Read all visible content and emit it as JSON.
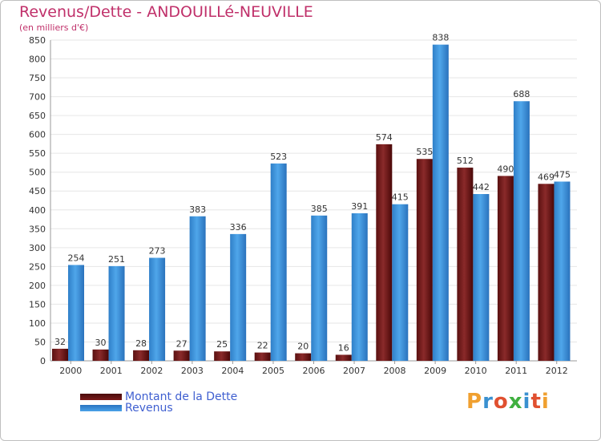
{
  "header": {
    "title": "Revenus/Dette - ANDOUILLé-NEUVILLE",
    "subtitle": "(en milliers d'€)"
  },
  "logo": {
    "letters": [
      "P",
      "r",
      "o",
      "x",
      "i",
      "t",
      "i"
    ],
    "colors": [
      "#f0a030",
      "#3a90d0",
      "#e05030",
      "#40b040",
      "#3a90d0",
      "#e05030",
      "#f0a030"
    ]
  },
  "colors": {
    "dette": "#7a1a1a",
    "revenus": "#3a8fd8",
    "axis_text": "#333333",
    "grid": "#e6e6e6"
  },
  "chart_data": {
    "type": "bar",
    "title": "Revenus/Dette - ANDOUILLé-NEUVILLE",
    "subtitle": "(en milliers d'€)",
    "xlabel": "",
    "ylabel": "",
    "ylim": [
      0,
      850
    ],
    "yticks": [
      0,
      50,
      100,
      150,
      200,
      250,
      300,
      350,
      400,
      450,
      500,
      550,
      600,
      650,
      700,
      750,
      800,
      850
    ],
    "categories": [
      "2000",
      "2001",
      "2002",
      "2003",
      "2004",
      "2005",
      "2006",
      "2007",
      "2008",
      "2009",
      "2010",
      "2011",
      "2012"
    ],
    "series": [
      {
        "name": "Montant de la Dette",
        "color": "#7a1a1a",
        "values": [
          32,
          30,
          28,
          27,
          25,
          22,
          20,
          16,
          574,
          535,
          512,
          490,
          469
        ]
      },
      {
        "name": "Revenus",
        "color": "#3a8fd8",
        "values": [
          254,
          251,
          273,
          383,
          336,
          523,
          385,
          391,
          415,
          838,
          442,
          688,
          475
        ]
      }
    ],
    "grid": true,
    "legend": "bottom-left"
  }
}
